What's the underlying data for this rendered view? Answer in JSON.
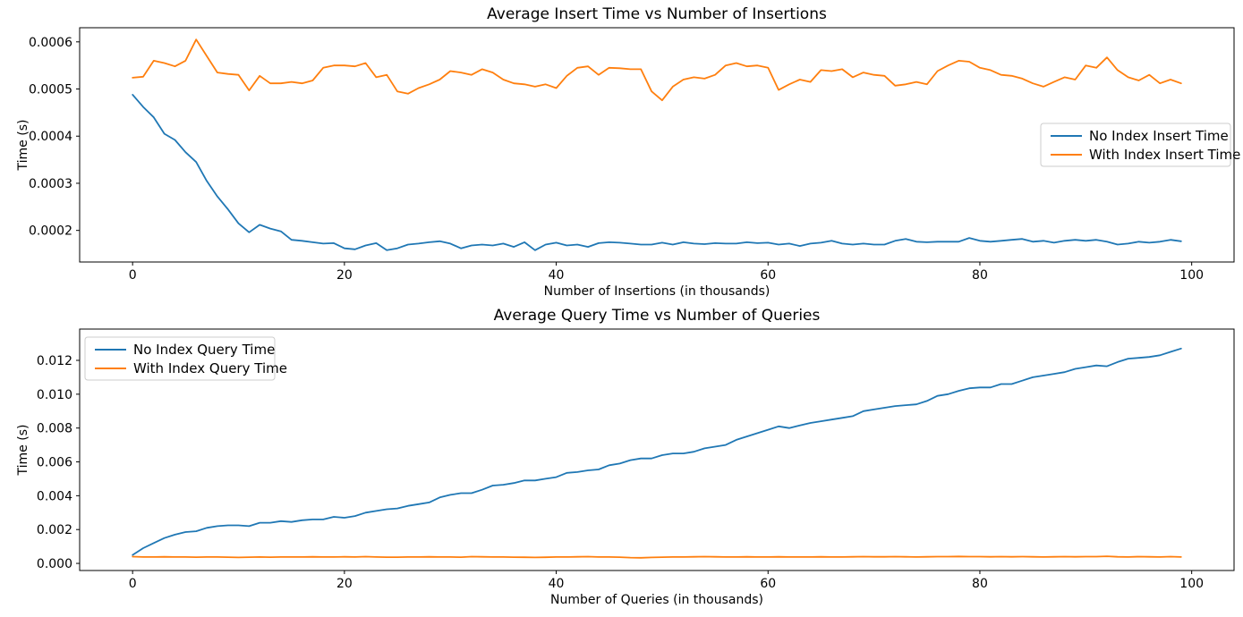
{
  "figure": {
    "background": "#ffffff",
    "accent_blue": "#1f77b4",
    "accent_orange": "#ff7f0e"
  },
  "chart_data": [
    {
      "type": "line",
      "title": "Average Insert Time vs Number of Insertions",
      "xlabel": "Number of Insertions (in thousands)",
      "ylabel": "Time (s)",
      "xlim": [
        -5,
        104
      ],
      "ylim": [
        0.000133,
        0.00063
      ],
      "grid": false,
      "legend_loc": "center-right",
      "xticks": {
        "values": [
          0,
          20,
          40,
          60,
          80,
          100
        ],
        "labels": [
          "0",
          "20",
          "40",
          "60",
          "80",
          "100"
        ]
      },
      "yticks": {
        "values": [
          0.0002,
          0.0003,
          0.0004,
          0.0005,
          0.0006
        ],
        "labels": [
          "0.0002",
          "0.0003",
          "0.0004",
          "0.0005",
          "0.0006"
        ]
      },
      "x": [
        0,
        1,
        2,
        3,
        4,
        5,
        6,
        7,
        8,
        9,
        10,
        11,
        12,
        13,
        14,
        15,
        16,
        17,
        18,
        19,
        20,
        21,
        22,
        23,
        24,
        25,
        26,
        27,
        28,
        29,
        30,
        31,
        32,
        33,
        34,
        35,
        36,
        37,
        38,
        39,
        40,
        41,
        42,
        43,
        44,
        45,
        46,
        47,
        48,
        49,
        50,
        51,
        52,
        53,
        54,
        55,
        56,
        57,
        58,
        59,
        60,
        61,
        62,
        63,
        64,
        65,
        66,
        67,
        68,
        69,
        70,
        71,
        72,
        73,
        74,
        75,
        76,
        77,
        78,
        79,
        80,
        81,
        82,
        83,
        84,
        85,
        86,
        87,
        88,
        89,
        90,
        91,
        92,
        93,
        94,
        95,
        96,
        97,
        98,
        99
      ],
      "series": [
        {
          "name": "No Index Insert Time",
          "color": "#1f77b4",
          "values": [
            0.000488,
            0.000462,
            0.00044,
            0.000405,
            0.000392,
            0.000366,
            0.000345,
            0.000305,
            0.000272,
            0.000245,
            0.000215,
            0.000196,
            0.000212,
            0.000204,
            0.000198,
            0.00018,
            0.000178,
            0.000175,
            0.000172,
            0.000173,
            0.000162,
            0.00016,
            0.000168,
            0.000173,
            0.000158,
            0.000162,
            0.00017,
            0.000172,
            0.000175,
            0.000177,
            0.000172,
            0.000162,
            0.000168,
            0.00017,
            0.000168,
            0.000172,
            0.000165,
            0.000175,
            0.000158,
            0.00017,
            0.000174,
            0.000168,
            0.00017,
            0.000165,
            0.000173,
            0.000175,
            0.000174,
            0.000172,
            0.00017,
            0.00017,
            0.000174,
            0.00017,
            0.000175,
            0.000172,
            0.000171,
            0.000173,
            0.000172,
            0.000172,
            0.000175,
            0.000173,
            0.000174,
            0.00017,
            0.000172,
            0.000167,
            0.000172,
            0.000174,
            0.000178,
            0.000172,
            0.00017,
            0.000172,
            0.00017,
            0.00017,
            0.000178,
            0.000182,
            0.000176,
            0.000175,
            0.000176,
            0.000176,
            0.000176,
            0.000184,
            0.000178,
            0.000176,
            0.000178,
            0.00018,
            0.000182,
            0.000176,
            0.000178,
            0.000174,
            0.000178,
            0.00018,
            0.000178,
            0.00018,
            0.000176,
            0.00017,
            0.000172,
            0.000176,
            0.000174,
            0.000176,
            0.00018,
            0.000177
          ]
        },
        {
          "name": "With Index Insert Time",
          "color": "#ff7f0e",
          "values": [
            0.000524,
            0.000526,
            0.00056,
            0.000555,
            0.000548,
            0.00056,
            0.000605,
            0.00057,
            0.000535,
            0.000532,
            0.00053,
            0.000497,
            0.000528,
            0.000512,
            0.000512,
            0.000515,
            0.000512,
            0.000518,
            0.000545,
            0.00055,
            0.00055,
            0.000548,
            0.000555,
            0.000525,
            0.00053,
            0.000495,
            0.00049,
            0.000502,
            0.00051,
            0.00052,
            0.000538,
            0.000535,
            0.00053,
            0.000542,
            0.000535,
            0.00052,
            0.000512,
            0.00051,
            0.000505,
            0.00051,
            0.000502,
            0.000528,
            0.000545,
            0.000548,
            0.00053,
            0.000545,
            0.000544,
            0.000542,
            0.000542,
            0.000495,
            0.000476,
            0.000505,
            0.00052,
            0.000525,
            0.000522,
            0.00053,
            0.00055,
            0.000555,
            0.000548,
            0.00055,
            0.000545,
            0.000498,
            0.00051,
            0.00052,
            0.000515,
            0.00054,
            0.000538,
            0.000542,
            0.000525,
            0.000535,
            0.00053,
            0.000528,
            0.000507,
            0.00051,
            0.000515,
            0.00051,
            0.000538,
            0.00055,
            0.00056,
            0.000558,
            0.000545,
            0.00054,
            0.00053,
            0.000528,
            0.000522,
            0.000512,
            0.000505,
            0.000515,
            0.000525,
            0.00052,
            0.00055,
            0.000545,
            0.000567,
            0.00054,
            0.000525,
            0.000518,
            0.00053,
            0.000512,
            0.00052,
            0.000512
          ]
        }
      ]
    },
    {
      "type": "line",
      "title": "Average Query Time vs Number of Queries",
      "xlabel": "Number of Queries (in thousands)",
      "ylabel": "Time (s)",
      "xlim": [
        -5,
        104
      ],
      "ylim": [
        -0.00042,
        0.01385
      ],
      "grid": false,
      "legend_loc": "upper-left",
      "xticks": {
        "values": [
          0,
          20,
          40,
          60,
          80,
          100
        ],
        "labels": [
          "0",
          "20",
          "40",
          "60",
          "80",
          "100"
        ]
      },
      "yticks": {
        "values": [
          0.0,
          0.002,
          0.004,
          0.006,
          0.008,
          0.01,
          0.012
        ],
        "labels": [
          "0.000",
          "0.002",
          "0.004",
          "0.006",
          "0.008",
          "0.010",
          "0.012"
        ]
      },
      "x": [
        0,
        1,
        2,
        3,
        4,
        5,
        6,
        7,
        8,
        9,
        10,
        11,
        12,
        13,
        14,
        15,
        16,
        17,
        18,
        19,
        20,
        21,
        22,
        23,
        24,
        25,
        26,
        27,
        28,
        29,
        30,
        31,
        32,
        33,
        34,
        35,
        36,
        37,
        38,
        39,
        40,
        41,
        42,
        43,
        44,
        45,
        46,
        47,
        48,
        49,
        50,
        51,
        52,
        53,
        54,
        55,
        56,
        57,
        58,
        59,
        60,
        61,
        62,
        63,
        64,
        65,
        66,
        67,
        68,
        69,
        70,
        71,
        72,
        73,
        74,
        75,
        76,
        77,
        78,
        79,
        80,
        81,
        82,
        83,
        84,
        85,
        86,
        87,
        88,
        89,
        90,
        91,
        92,
        93,
        94,
        95,
        96,
        97,
        98,
        99
      ],
      "series": [
        {
          "name": "No Index Query Time",
          "color": "#1f77b4",
          "values": [
            0.0005,
            0.0009,
            0.0012,
            0.0015,
            0.0017,
            0.00185,
            0.0019,
            0.0021,
            0.0022,
            0.00225,
            0.00225,
            0.0022,
            0.0024,
            0.0024,
            0.0025,
            0.00245,
            0.00255,
            0.0026,
            0.0026,
            0.00275,
            0.0027,
            0.0028,
            0.003,
            0.0031,
            0.0032,
            0.00325,
            0.0034,
            0.0035,
            0.0036,
            0.0039,
            0.00405,
            0.00415,
            0.00415,
            0.00435,
            0.0046,
            0.00465,
            0.00475,
            0.0049,
            0.0049,
            0.005,
            0.0051,
            0.00535,
            0.0054,
            0.0055,
            0.00555,
            0.0058,
            0.0059,
            0.0061,
            0.0062,
            0.0062,
            0.0064,
            0.0065,
            0.0065,
            0.0066,
            0.0068,
            0.0069,
            0.007,
            0.0073,
            0.0075,
            0.0077,
            0.0079,
            0.0081,
            0.008,
            0.00815,
            0.0083,
            0.0084,
            0.0085,
            0.0086,
            0.0087,
            0.009,
            0.0091,
            0.0092,
            0.0093,
            0.00935,
            0.0094,
            0.0096,
            0.0099,
            0.01,
            0.0102,
            0.01035,
            0.0104,
            0.0104,
            0.0106,
            0.0106,
            0.0108,
            0.011,
            0.0111,
            0.0112,
            0.0113,
            0.0115,
            0.0116,
            0.0117,
            0.01165,
            0.0119,
            0.0121,
            0.01215,
            0.0122,
            0.0123,
            0.0125,
            0.0127
          ]
        },
        {
          "name": "With Index Query Time",
          "color": "#ff7f0e",
          "values": [
            0.0004,
            0.00038,
            0.00038,
            0.00039,
            0.00038,
            0.00038,
            0.00037,
            0.00038,
            0.00038,
            0.00037,
            0.00035,
            0.00037,
            0.00038,
            0.00037,
            0.00038,
            0.00038,
            0.00038,
            0.00039,
            0.00038,
            0.00038,
            0.00039,
            0.00038,
            0.0004,
            0.00038,
            0.00037,
            0.00037,
            0.00038,
            0.00038,
            0.00039,
            0.00038,
            0.00038,
            0.00037,
            0.0004,
            0.00039,
            0.00038,
            0.00038,
            0.00037,
            0.00036,
            0.00035,
            0.00036,
            0.00038,
            0.00038,
            0.00039,
            0.0004,
            0.00038,
            0.00038,
            0.00037,
            0.00034,
            0.00033,
            0.00035,
            0.00037,
            0.00038,
            0.00038,
            0.00039,
            0.0004,
            0.00039,
            0.00038,
            0.00038,
            0.00039,
            0.00038,
            0.00038,
            0.00039,
            0.00038,
            0.00038,
            0.00038,
            0.00039,
            0.00038,
            0.00038,
            0.00039,
            0.0004,
            0.00039,
            0.00039,
            0.0004,
            0.00039,
            0.00038,
            0.00039,
            0.0004,
            0.0004,
            0.00041,
            0.0004,
            0.0004,
            0.00039,
            0.0004,
            0.00039,
            0.0004,
            0.00039,
            0.00038,
            0.00039,
            0.0004,
            0.00039,
            0.0004,
            0.0004,
            0.00042,
            0.00039,
            0.00038,
            0.0004,
            0.00039,
            0.00038,
            0.0004,
            0.00038
          ]
        }
      ]
    }
  ]
}
